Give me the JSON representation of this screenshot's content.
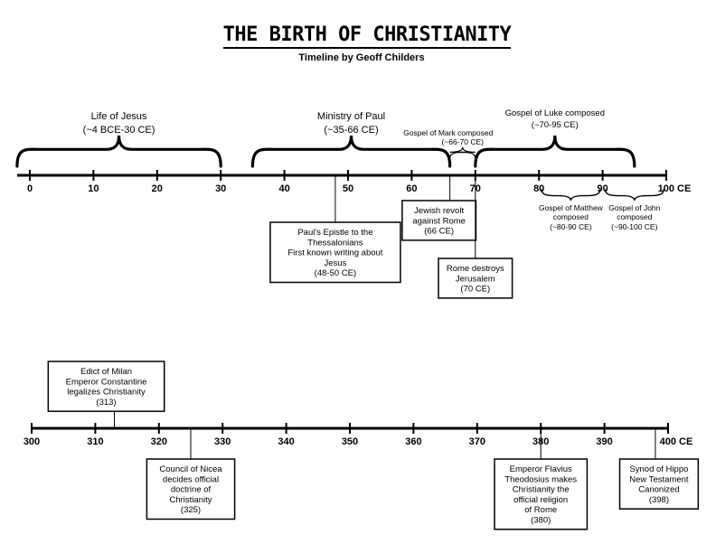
{
  "title": "THE BIRTH OF CHRISTIANITY",
  "subtitle": "Timeline by Geoff Childers",
  "timeline1": {
    "start": 0,
    "end": 100,
    "step": 10,
    "end_label": "100 CE",
    "spans": [
      {
        "label": "Life of Jesus",
        "sublabel": "(~4 BCE-30 CE)",
        "from": -2,
        "to": 30,
        "size": "large"
      },
      {
        "label": "Ministry of Paul",
        "sublabel": "(~35-66 CE)",
        "from": 35,
        "to": 66,
        "size": "large"
      },
      {
        "label": "Gospel of Mark composed",
        "sublabel": "(~66-70 CE)",
        "from": 66,
        "to": 70,
        "size": "small"
      },
      {
        "label": "Gospel of Luke composed",
        "sublabel": "(~70-95 CE)",
        "from": 70,
        "to": 95,
        "size": "large"
      }
    ],
    "below_spans": [
      {
        "label": "Gospel of Matthew",
        "label2": "composed",
        "sublabel": "(~80-90 CE)",
        "from": 80,
        "to": 90
      },
      {
        "label": "Gospel of John",
        "label2": "composed",
        "sublabel": "(~90-100 CE)",
        "from": 90,
        "to": 100
      }
    ],
    "events": [
      {
        "year": 48,
        "lines": [
          "Paul's Epistle to the",
          "Thessalonians",
          "First known writing about",
          "Jesus",
          "(48-50 CE)"
        ],
        "side": "below",
        "depth": 52
      },
      {
        "year": 66,
        "lines": [
          "Jewish revolt",
          "against Rome",
          "(66 CE)"
        ],
        "side": "below",
        "depth": 28
      },
      {
        "year": 70,
        "lines": [
          "Rome destroys",
          "Jerusalem",
          "(70 CE)"
        ],
        "side": "below",
        "depth": 92
      }
    ]
  },
  "timeline2": {
    "start": 300,
    "end": 400,
    "step": 10,
    "end_label": "400 CE",
    "events": [
      {
        "year": 313,
        "lines": [
          "Edict of Milan",
          "Emperor Constantine",
          "legalizes Christianity",
          "(313)"
        ],
        "side": "above"
      },
      {
        "year": 325,
        "lines": [
          "Council of Nicea",
          "decides official",
          "doctrine of",
          "Christianity",
          "(325)"
        ],
        "side": "below"
      },
      {
        "year": 380,
        "lines": [
          "Emperor Flavius",
          "Theodosius makes",
          "Christianity the",
          "official religion",
          "of Rome",
          "(380)"
        ],
        "side": "below"
      },
      {
        "year": 398,
        "lines": [
          "Synod of Hippo",
          "New Testament",
          "Canonized",
          "(398)"
        ],
        "side": "below"
      }
    ]
  }
}
